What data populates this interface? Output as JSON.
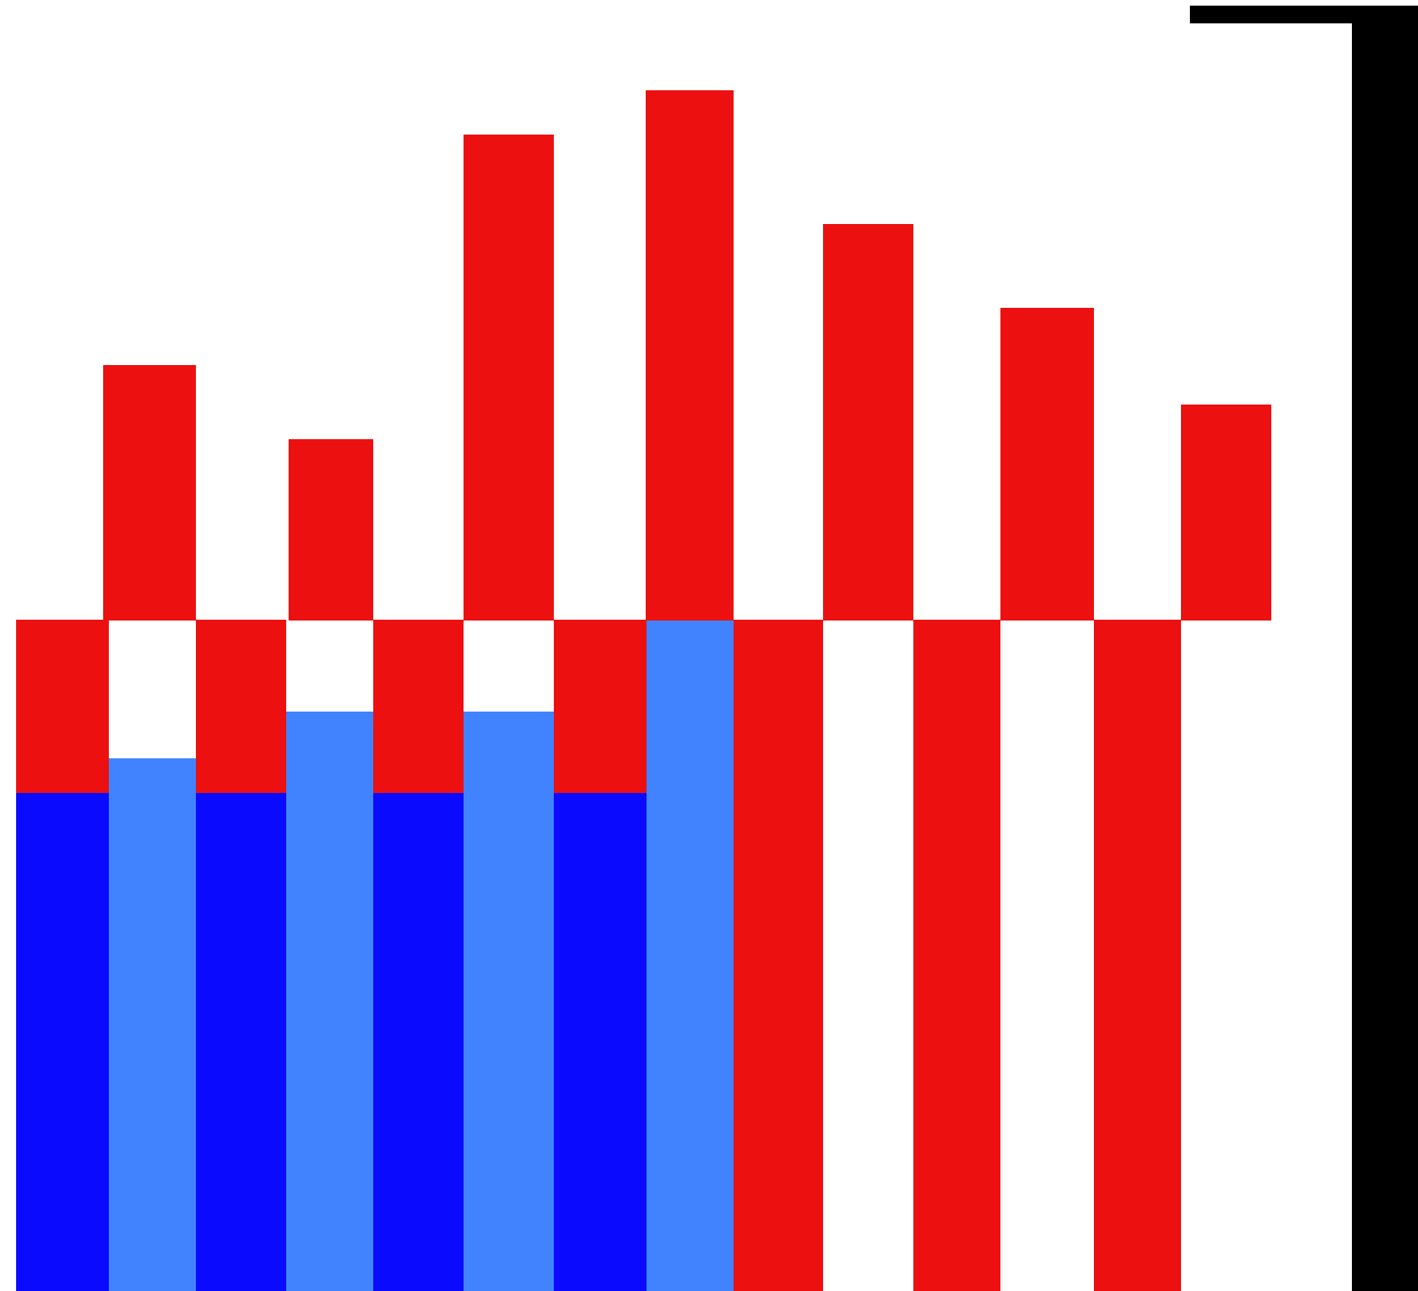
{
  "palette": {
    "background": "#ffffff",
    "red": "#ec1010",
    "dark_blue": "#0a0aff",
    "light_blue": "#4183ff",
    "black": "#000000"
  },
  "artwork": {
    "description_tag": "abstract-striped-block-graphic",
    "bar_pattern": [
      "red",
      "light_blue",
      "red",
      "light_blue",
      "red",
      "light_blue",
      "red",
      "light_blue",
      "red",
      "white",
      "red",
      "white",
      "red",
      "white"
    ],
    "relative_bar_heights": [
      0.0,
      0.575,
      0.0,
      0.524,
      0.0,
      0.855,
      0.0,
      0.91,
      0.0,
      0.745,
      0.0,
      0.64,
      0.0,
      0.52
    ]
  }
}
